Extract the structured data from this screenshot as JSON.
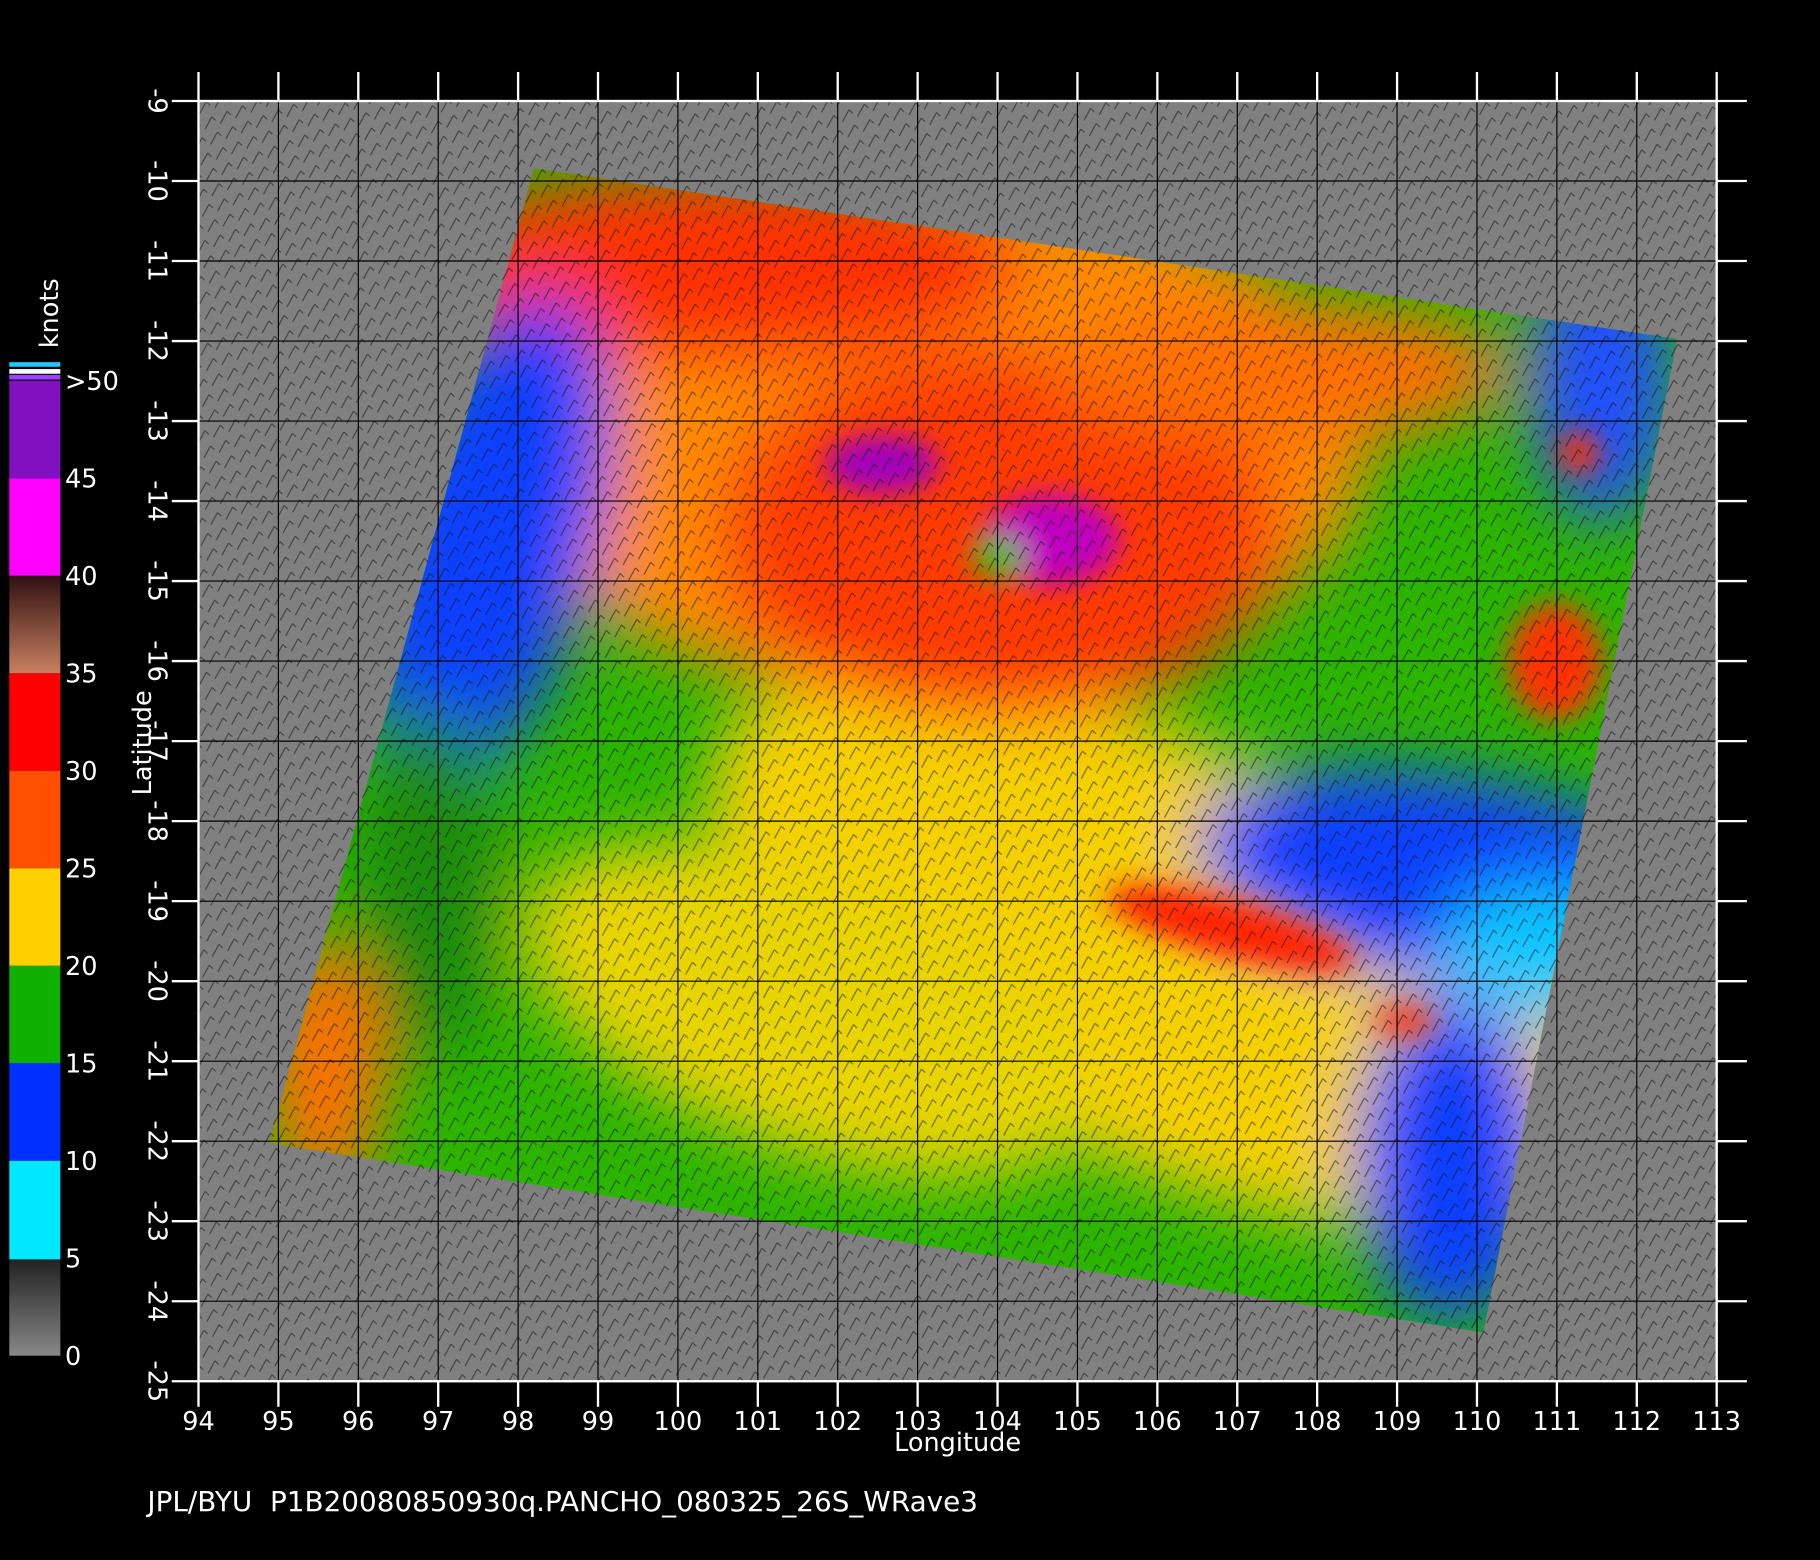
{
  "map": {
    "x_label": "Longitude",
    "y_label": "Latitude",
    "xlim": [
      94,
      113
    ],
    "ylim": [
      -25,
      -9
    ],
    "xticks": [
      94,
      95,
      96,
      97,
      98,
      99,
      100,
      101,
      102,
      103,
      104,
      105,
      106,
      107,
      108,
      109,
      110,
      111,
      112,
      113
    ],
    "yticks": [
      -9,
      -10,
      -11,
      -12,
      -13,
      -14,
      -15,
      -16,
      -17,
      -18,
      -19,
      -20,
      -21,
      -22,
      -23,
      -24,
      -25
    ]
  },
  "colorbar": {
    "unit": "knots",
    "ticks": [
      0,
      5,
      10,
      15,
      20,
      25,
      30,
      35,
      40,
      45,
      {
        "value": 50,
        "label": ">50"
      }
    ]
  },
  "footer": "JPL/BYU  P1B20080850930q.PANCHO_080325_26S_WRave3"
}
